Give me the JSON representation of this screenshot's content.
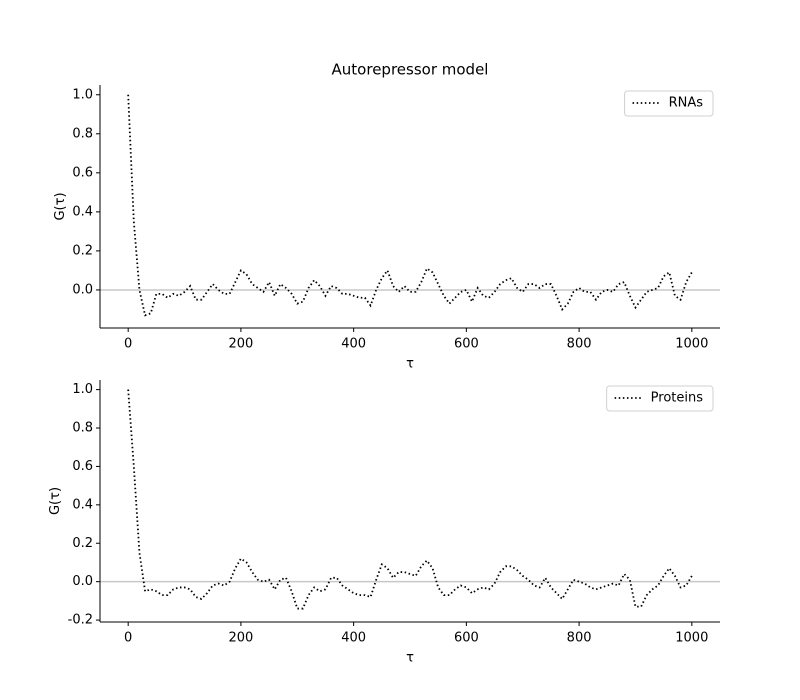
{
  "chart_data": [
    {
      "type": "line",
      "title": "Autorepressor model",
      "xlabel": "τ",
      "ylabel": "G(τ)",
      "x": [
        0,
        10,
        20,
        30,
        40,
        50,
        60,
        70,
        80,
        90,
        100,
        110,
        120,
        130,
        140,
        150,
        160,
        170,
        180,
        190,
        200,
        210,
        220,
        230,
        240,
        250,
        260,
        270,
        280,
        290,
        300,
        310,
        320,
        330,
        340,
        350,
        360,
        370,
        380,
        390,
        400,
        410,
        420,
        430,
        440,
        450,
        460,
        470,
        480,
        490,
        500,
        510,
        520,
        530,
        540,
        550,
        560,
        570,
        580,
        590,
        600,
        610,
        620,
        630,
        640,
        650,
        660,
        670,
        680,
        690,
        700,
        710,
        720,
        730,
        740,
        750,
        760,
        770,
        780,
        790,
        800,
        810,
        820,
        830,
        840,
        850,
        860,
        870,
        880,
        890,
        900,
        910,
        920,
        930,
        940,
        950,
        960,
        970,
        980,
        990,
        1000
      ],
      "series": [
        {
          "name": "RNAs",
          "color": "#000000",
          "values": [
            1.0,
            0.35,
            0.0,
            -0.13,
            -0.12,
            -0.02,
            -0.02,
            -0.04,
            -0.02,
            -0.03,
            -0.01,
            0.02,
            -0.05,
            -0.05,
            -0.01,
            0.03,
            0.0,
            -0.02,
            -0.02,
            0.04,
            0.1,
            0.08,
            0.03,
            0.01,
            -0.01,
            0.04,
            -0.03,
            0.03,
            0.01,
            -0.02,
            -0.07,
            -0.06,
            0.01,
            0.05,
            0.02,
            -0.03,
            0.02,
            0.01,
            -0.02,
            -0.02,
            -0.03,
            -0.04,
            -0.04,
            -0.08,
            0.0,
            0.06,
            0.1,
            0.02,
            -0.01,
            0.02,
            -0.01,
            -0.01,
            0.04,
            0.11,
            0.09,
            0.03,
            -0.03,
            -0.07,
            -0.04,
            -0.01,
            0.0,
            -0.06,
            0.01,
            -0.03,
            -0.04,
            -0.01,
            0.03,
            0.05,
            0.06,
            0.01,
            -0.01,
            0.03,
            0.03,
            0.01,
            0.03,
            0.03,
            -0.03,
            -0.1,
            -0.07,
            -0.01,
            0.01,
            -0.01,
            -0.01,
            -0.05,
            -0.01,
            0.0,
            -0.01,
            0.03,
            0.04,
            -0.03,
            -0.09,
            -0.05,
            -0.01,
            0.0,
            0.01,
            0.07,
            0.09,
            -0.03,
            -0.05,
            0.04,
            0.09
          ]
        }
      ],
      "hline": 0,
      "xlim": [
        -50,
        1050
      ],
      "xticks": [
        0,
        200,
        400,
        600,
        800,
        1000
      ],
      "ylim": [
        -0.195,
        1.05
      ],
      "yticks": [
        {
          "value": 0,
          "label": "0.0"
        },
        0.2,
        0.4,
        0.6,
        0.8,
        {
          "value": 1,
          "label": "1.0"
        }
      ],
      "legend": "upper right"
    },
    {
      "type": "line",
      "xlabel": "τ",
      "ylabel": "G(τ)",
      "x": [
        0,
        10,
        20,
        30,
        40,
        50,
        60,
        70,
        80,
        90,
        100,
        110,
        120,
        130,
        140,
        150,
        160,
        170,
        180,
        190,
        200,
        210,
        220,
        230,
        240,
        250,
        260,
        270,
        280,
        290,
        300,
        310,
        320,
        330,
        340,
        350,
        360,
        370,
        380,
        390,
        400,
        410,
        420,
        430,
        440,
        450,
        460,
        470,
        480,
        490,
        500,
        510,
        520,
        530,
        540,
        550,
        560,
        570,
        580,
        590,
        600,
        610,
        620,
        630,
        640,
        650,
        660,
        670,
        680,
        690,
        700,
        710,
        720,
        730,
        740,
        750,
        760,
        770,
        780,
        790,
        800,
        810,
        820,
        830,
        840,
        850,
        860,
        870,
        880,
        890,
        900,
        910,
        920,
        930,
        940,
        950,
        960,
        970,
        980,
        990,
        1000
      ],
      "series": [
        {
          "name": "Proteins",
          "color": "#000000",
          "values": [
            1.0,
            0.6,
            0.15,
            -0.05,
            -0.04,
            -0.05,
            -0.07,
            -0.07,
            -0.04,
            -0.03,
            -0.03,
            -0.04,
            -0.08,
            -0.09,
            -0.06,
            -0.02,
            -0.01,
            -0.02,
            0.0,
            0.07,
            0.12,
            0.1,
            0.05,
            0.01,
            0.0,
            0.01,
            -0.04,
            0.01,
            0.02,
            -0.05,
            -0.14,
            -0.14,
            -0.07,
            -0.03,
            -0.05,
            -0.04,
            0.02,
            0.02,
            -0.02,
            -0.04,
            -0.06,
            -0.07,
            -0.07,
            -0.08,
            0.01,
            0.09,
            0.07,
            0.02,
            0.05,
            0.05,
            0.04,
            0.03,
            0.08,
            0.11,
            0.07,
            -0.03,
            -0.07,
            -0.07,
            -0.04,
            -0.02,
            -0.03,
            -0.06,
            -0.04,
            -0.03,
            -0.04,
            -0.01,
            0.05,
            0.08,
            0.08,
            0.06,
            0.03,
            0.01,
            -0.02,
            -0.03,
            0.02,
            -0.03,
            -0.06,
            -0.09,
            -0.04,
            0.01,
            0.0,
            -0.01,
            -0.03,
            -0.04,
            -0.03,
            -0.02,
            -0.01,
            -0.02,
            0.04,
            0.01,
            -0.13,
            -0.13,
            -0.07,
            -0.04,
            -0.02,
            0.03,
            0.07,
            0.03,
            -0.03,
            -0.02,
            0.03
          ]
        }
      ],
      "hline": 0,
      "xlim": [
        -50,
        1050
      ],
      "xticks": [
        0,
        200,
        400,
        600,
        800,
        1000
      ],
      "ylim": [
        -0.21,
        1.05
      ],
      "yticks": [
        -0.2,
        {
          "value": 0,
          "label": "0.0"
        },
        0.2,
        0.4,
        0.6,
        0.8,
        {
          "value": 1,
          "label": "1.0"
        }
      ],
      "legend": "upper right"
    }
  ]
}
